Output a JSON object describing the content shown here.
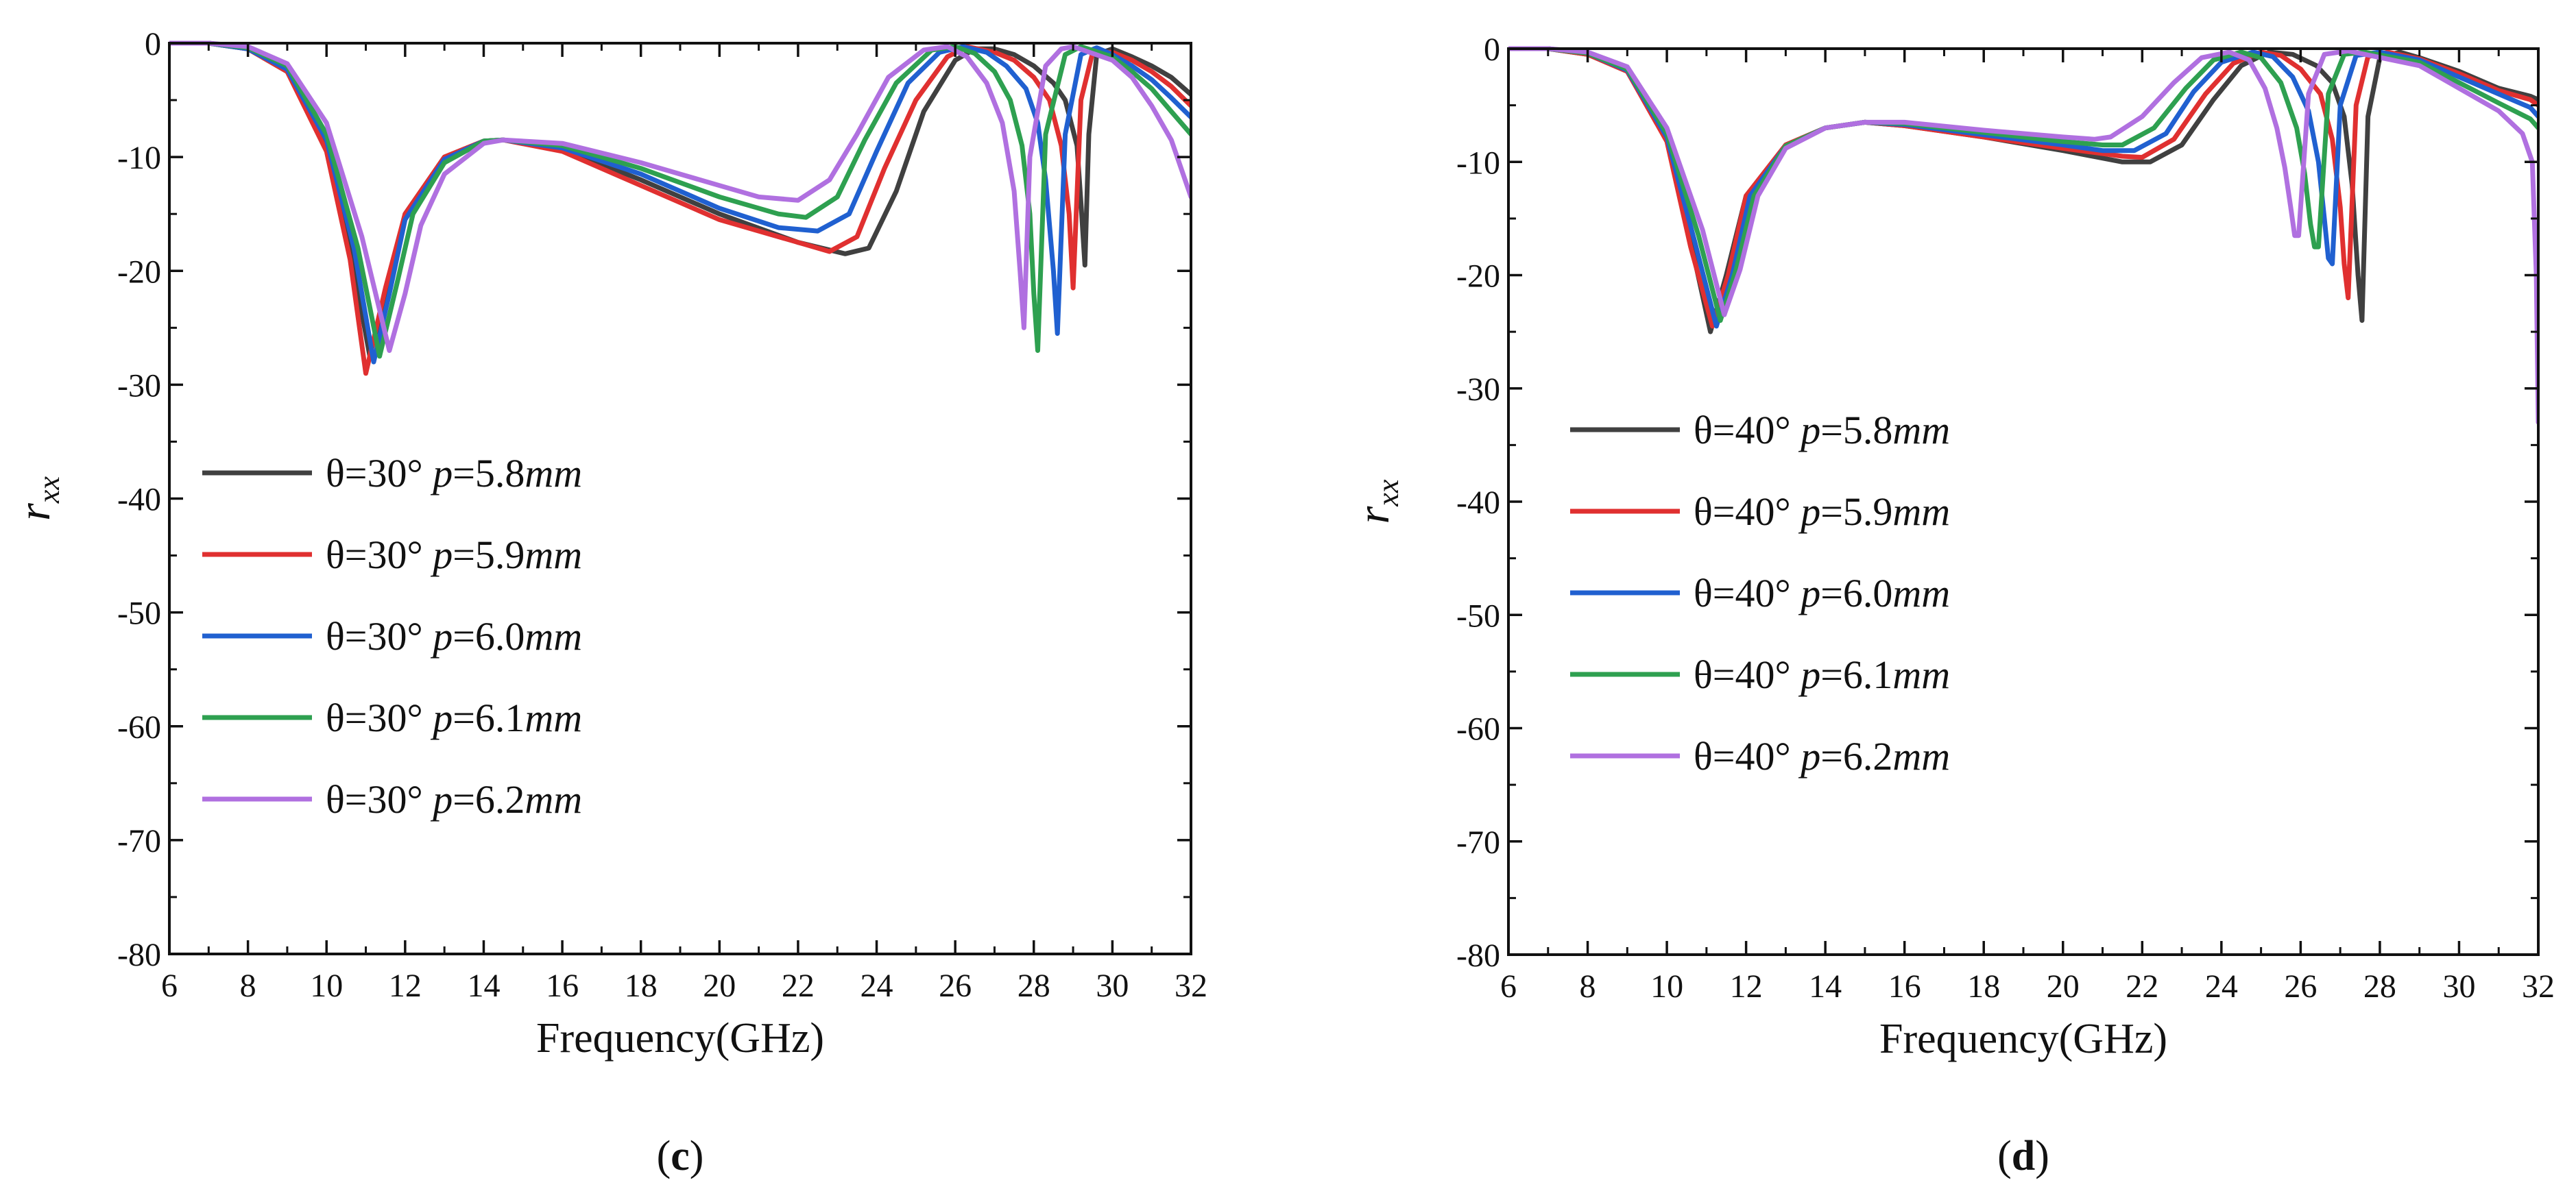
{
  "chart_data": [
    {
      "type": "line",
      "panel": "c",
      "panel_label": {
        "open": "(",
        "letter": "c",
        "close": ")"
      },
      "xlabel": "Frequency(GHz)",
      "ylabel": {
        "main": "r",
        "sub": "xx"
      },
      "xlim": [
        6,
        32
      ],
      "ylim": [
        -80,
        0
      ],
      "x_ticks": [
        6,
        8,
        10,
        12,
        14,
        16,
        18,
        20,
        22,
        24,
        26,
        28,
        30,
        32
      ],
      "y_ticks": [
        0,
        -10,
        -20,
        -30,
        -40,
        -50,
        -60,
        -70,
        -80
      ],
      "legend_position": "left-middle",
      "series": [
        {
          "name": "θ=30° p=5.8mm",
          "legend": {
            "prefix": "θ=30° ",
            "p": "p",
            "eq": "=5.8",
            "unit": "mm"
          },
          "color": "#404040",
          "x": [
            6,
            7,
            8,
            9,
            10,
            10.6,
            11.1,
            11.5,
            12,
            13,
            14,
            14.5,
            16,
            18,
            20,
            22,
            23.2,
            23.8,
            24.5,
            25.2,
            26,
            26.5,
            27,
            27.5,
            28,
            28.5,
            28.8,
            29.1,
            29.2,
            29.3,
            29.4,
            29.6,
            30,
            30.5,
            31,
            31.5,
            32
          ],
          "y": [
            0,
            0,
            -0.5,
            -2.5,
            -9,
            -18,
            -27.5,
            -22,
            -15,
            -10,
            -8.6,
            -8.5,
            -9.3,
            -12,
            -15,
            -17.5,
            -18.5,
            -18,
            -13,
            -6,
            -1.5,
            -0.5,
            -0.5,
            -1,
            -2,
            -3.5,
            -5,
            -9,
            -14,
            -19.5,
            -8,
            -1,
            -0.5,
            -1.2,
            -2,
            -3,
            -4.5
          ]
        },
        {
          "name": "θ=30° p=5.9mm",
          "legend": {
            "prefix": "θ=30° ",
            "p": "p",
            "eq": "=5.9",
            "unit": "mm"
          },
          "color": "#e03030",
          "x": [
            6,
            7,
            8,
            9,
            10,
            10.6,
            11.0,
            11.5,
            12,
            13,
            14,
            14.5,
            16,
            18,
            20,
            22,
            22.8,
            23.5,
            24.2,
            25,
            25.8,
            26.3,
            27,
            27.5,
            28,
            28.4,
            28.7,
            28.9,
            29.0,
            29.2,
            29.5,
            30,
            30.5,
            31,
            31.5,
            32
          ],
          "y": [
            0,
            0,
            -0.5,
            -2.5,
            -9.5,
            -19,
            -29,
            -21.5,
            -15,
            -10,
            -8.6,
            -8.5,
            -9.5,
            -12.5,
            -15.5,
            -17.5,
            -18.3,
            -17,
            -11,
            -5,
            -1.2,
            -0.3,
            -0.8,
            -1.5,
            -3,
            -5,
            -9,
            -15,
            -21.5,
            -5,
            -0.8,
            -0.8,
            -1.5,
            -2.5,
            -3.8,
            -5.5
          ]
        },
        {
          "name": "θ=30° p=6.0mm",
          "legend": {
            "prefix": "θ=30° ",
            "p": "p",
            "eq": "=6.0",
            "unit": "mm"
          },
          "color": "#2060d0",
          "x": [
            6,
            7,
            8,
            9,
            10,
            10.7,
            11.2,
            11.6,
            12,
            13,
            14,
            14.5,
            16,
            18,
            20,
            21.5,
            22.5,
            23.3,
            24,
            24.8,
            25.6,
            26.2,
            26.8,
            27.3,
            27.8,
            28.1,
            28.3,
            28.5,
            28.6,
            28.8,
            29.2,
            29.6,
            30,
            30.5,
            31,
            31.5,
            32
          ],
          "y": [
            0,
            0,
            -0.5,
            -2.3,
            -8.5,
            -18,
            -28,
            -22,
            -15.5,
            -10.2,
            -8.6,
            -8.5,
            -9.2,
            -11.5,
            -14.5,
            -16.2,
            -16.5,
            -15,
            -9.5,
            -3.5,
            -0.8,
            -0.3,
            -0.8,
            -2,
            -4,
            -7,
            -12,
            -20,
            -25.5,
            -8,
            -1,
            -0.4,
            -1,
            -2,
            -3.2,
            -4.8,
            -6.5
          ]
        },
        {
          "name": "θ=30° p=6.1mm",
          "legend": {
            "prefix": "θ=30° ",
            "p": "p",
            "eq": "=6.1",
            "unit": "mm"
          },
          "color": "#2ea050",
          "x": [
            6,
            7,
            8,
            9,
            10,
            10.8,
            11.35,
            11.8,
            12.2,
            13,
            14,
            14.5,
            16,
            18,
            20,
            21.5,
            22.2,
            23,
            23.7,
            24.5,
            25.4,
            26.0,
            26.5,
            27,
            27.4,
            27.7,
            27.9,
            28.0,
            28.1,
            28.3,
            28.8,
            29.2,
            30,
            30.5,
            31,
            31.5,
            32
          ],
          "y": [
            0,
            0,
            -0.4,
            -2,
            -8,
            -18,
            -27.5,
            -21,
            -15,
            -10.5,
            -8.6,
            -8.5,
            -9,
            -11,
            -13.5,
            -15,
            -15.3,
            -13.5,
            -8.5,
            -3.5,
            -0.6,
            -0.3,
            -0.9,
            -2.5,
            -5,
            -9,
            -15,
            -22,
            -27,
            -8,
            -1,
            -0.3,
            -1.2,
            -2.5,
            -4,
            -6,
            -8
          ]
        },
        {
          "name": "θ=30° p=6.2mm",
          "legend": {
            "prefix": "θ=30° ",
            "p": "p",
            "eq": "=6.2",
            "unit": "mm"
          },
          "color": "#b070e0",
          "x": [
            6,
            7,
            8,
            9,
            10,
            10.9,
            11.6,
            12,
            12.4,
            13,
            14,
            14.5,
            16,
            18,
            20,
            21,
            22,
            22.8,
            23.5,
            24.3,
            25.2,
            25.8,
            26.3,
            26.8,
            27.2,
            27.5,
            27.65,
            27.75,
            27.9,
            28.3,
            28.7,
            29,
            30,
            30.5,
            31,
            31.5,
            32
          ],
          "y": [
            0,
            0,
            -0.3,
            -1.8,
            -7,
            -17,
            -27,
            -22,
            -16,
            -11.5,
            -8.8,
            -8.5,
            -8.8,
            -10.5,
            -12.5,
            -13.5,
            -13.8,
            -12,
            -8,
            -3,
            -0.6,
            -0.3,
            -1.2,
            -3.5,
            -7,
            -13,
            -20,
            -25,
            -10,
            -2,
            -0.5,
            -0.3,
            -1.5,
            -3,
            -5.5,
            -8.5,
            -13.5
          ]
        }
      ]
    },
    {
      "type": "line",
      "panel": "d",
      "panel_label": {
        "open": "(",
        "letter": "d",
        "close": ")"
      },
      "xlabel": "Frequency(GHz)",
      "ylabel": {
        "main": "r",
        "sub": "xx"
      },
      "xlim": [
        6,
        32
      ],
      "ylim": [
        -80,
        0
      ],
      "x_ticks": [
        6,
        8,
        10,
        12,
        14,
        16,
        18,
        20,
        22,
        24,
        26,
        28,
        30,
        32
      ],
      "y_ticks": [
        0,
        -10,
        -20,
        -30,
        -40,
        -50,
        -60,
        -70,
        -80
      ],
      "legend_position": "left-middle",
      "series": [
        {
          "name": "θ=40° p=5.8mm",
          "legend": {
            "prefix": "θ=40° ",
            "p": "p",
            "eq": "=5.8",
            "unit": "mm"
          },
          "color": "#404040",
          "x": [
            6,
            7,
            8,
            9,
            10,
            10.6,
            11.1,
            11.5,
            12,
            13,
            14,
            15,
            16,
            18,
            20,
            21.5,
            22.2,
            23,
            23.8,
            24.5,
            25.2,
            25.8,
            26.4,
            26.8,
            27.1,
            27.3,
            27.45,
            27.55,
            27.7,
            28,
            28.5,
            29,
            30,
            31,
            31.8,
            32
          ],
          "y": [
            0,
            0,
            -0.5,
            -2,
            -8,
            -17,
            -25,
            -20,
            -13,
            -8.5,
            -7,
            -6.5,
            -6.8,
            -7.8,
            -9,
            -10,
            -10,
            -8.5,
            -4.5,
            -1.5,
            -0.3,
            -0.5,
            -1.5,
            -3,
            -6,
            -12,
            -20,
            -24,
            -6,
            -0.8,
            -0.3,
            -0.8,
            -2,
            -3.5,
            -4.2,
            -4.5
          ]
        },
        {
          "name": "θ=40° p=5.9mm",
          "legend": {
            "prefix": "θ=40° ",
            "p": "p",
            "eq": "=5.9",
            "unit": "mm"
          },
          "color": "#e03030",
          "x": [
            6,
            7,
            8,
            9,
            10,
            10.6,
            11.15,
            11.55,
            12,
            13,
            14,
            15,
            16,
            18,
            20,
            21.5,
            22,
            22.8,
            23.6,
            24.3,
            25,
            25.5,
            26,
            26.5,
            26.8,
            27.0,
            27.1,
            27.2,
            27.4,
            27.7,
            28.2,
            29,
            30,
            31,
            31.8,
            32
          ],
          "y": [
            0,
            0,
            -0.5,
            -2,
            -8.2,
            -17.5,
            -24.5,
            -20,
            -13,
            -8.5,
            -7,
            -6.5,
            -6.8,
            -7.8,
            -8.8,
            -9.5,
            -9.6,
            -8,
            -4,
            -1.3,
            -0.3,
            -0.6,
            -1.8,
            -4,
            -8,
            -14,
            -19,
            -22,
            -5,
            -0.7,
            -0.3,
            -0.9,
            -2.2,
            -3.7,
            -4.5,
            -5
          ]
        },
        {
          "name": "θ=40° p=6.0mm",
          "legend": {
            "prefix": "θ=40° ",
            "p": "p",
            "eq": "=6.0",
            "unit": "mm"
          },
          "color": "#2060d0",
          "x": [
            6,
            7,
            8,
            9,
            10,
            10.7,
            11.25,
            11.65,
            12.1,
            13,
            14,
            15,
            16,
            18,
            20,
            21,
            21.8,
            22.6,
            23.3,
            24,
            24.8,
            25.3,
            25.8,
            26.2,
            26.45,
            26.6,
            26.7,
            26.8,
            27.0,
            27.4,
            28,
            29,
            30,
            31,
            31.8,
            32
          ],
          "y": [
            0,
            0,
            -0.4,
            -1.9,
            -7.8,
            -17,
            -24.5,
            -20,
            -13,
            -8.6,
            -7,
            -6.5,
            -6.7,
            -7.6,
            -8.5,
            -9,
            -9,
            -7.5,
            -3.8,
            -1.2,
            -0.3,
            -0.7,
            -2.5,
            -5.5,
            -10,
            -15,
            -18.5,
            -19,
            -5,
            -0.6,
            -0.3,
            -1,
            -2.5,
            -4,
            -5.2,
            -6
          ]
        },
        {
          "name": "θ=40° p=6.1mm",
          "legend": {
            "prefix": "θ=40° ",
            "p": "p",
            "eq": "=6.1",
            "unit": "mm"
          },
          "color": "#2ea050",
          "x": [
            6,
            7,
            8,
            9,
            10,
            10.8,
            11.35,
            11.75,
            12.2,
            13,
            14,
            15,
            16,
            18,
            20,
            21,
            21.5,
            22.3,
            23.1,
            23.8,
            24.5,
            25,
            25.5,
            25.9,
            26.1,
            26.25,
            26.35,
            26.45,
            26.7,
            27.1,
            27.6,
            29,
            30,
            31,
            31.8,
            32
          ],
          "y": [
            0,
            0,
            -0.4,
            -1.8,
            -7.5,
            -16.5,
            -24,
            -19.5,
            -13,
            -8.6,
            -7,
            -6.5,
            -6.6,
            -7.4,
            -8.2,
            -8.5,
            -8.5,
            -7,
            -3.5,
            -1,
            -0.3,
            -0.8,
            -3,
            -7,
            -11,
            -15.5,
            -17.5,
            -17.5,
            -4,
            -0.5,
            -0.3,
            -1.2,
            -3,
            -4.8,
            -6.2,
            -7
          ]
        },
        {
          "name": "θ=40° p=6.2mm",
          "legend": {
            "prefix": "θ=40° ",
            "p": "p",
            "eq": "=6.2",
            "unit": "mm"
          },
          "color": "#b070e0",
          "x": [
            6,
            7,
            8,
            9,
            10,
            10.9,
            11.45,
            11.85,
            12.3,
            13,
            14,
            15,
            16,
            18,
            20,
            20.8,
            21.2,
            22,
            22.8,
            23.5,
            24.2,
            24.7,
            25.1,
            25.4,
            25.6,
            25.75,
            25.85,
            25.95,
            26.2,
            26.6,
            27.2,
            29,
            30,
            31,
            31.6,
            31.85,
            31.95,
            32
          ],
          "y": [
            0,
            0,
            -0.3,
            -1.6,
            -7,
            -16,
            -23.5,
            -19.5,
            -13,
            -8.8,
            -7,
            -6.5,
            -6.5,
            -7.2,
            -7.8,
            -8,
            -7.8,
            -6,
            -3,
            -0.8,
            -0.3,
            -1,
            -3.5,
            -7,
            -10.5,
            -14,
            -16.5,
            -16.5,
            -4,
            -0.5,
            -0.2,
            -1.5,
            -3.5,
            -5.5,
            -7.5,
            -10,
            -20,
            -33
          ]
        }
      ]
    }
  ]
}
